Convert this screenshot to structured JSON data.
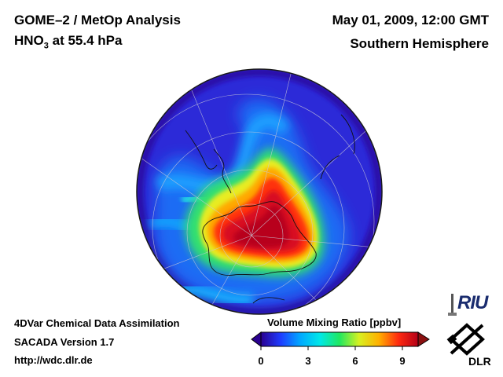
{
  "header": {
    "title": "GOME–2 / MetOp Analysis",
    "species_prefix": "HNO",
    "species_sub": "3",
    "species_suffix": " at 55.4 hPa",
    "date": "May 01, 2009, 12:00 GMT",
    "hemisphere": "Southern Hemisphere"
  },
  "footer": {
    "line1": "4DVar Chemical Data Assimilation",
    "line2": "SACADA Version 1.7",
    "line3": "http://wdc.dlr.de"
  },
  "colorbar": {
    "title": "Volume Mixing Ratio [ppbv]",
    "ticks": [
      "0",
      "3",
      "6",
      "9"
    ],
    "range": [
      0,
      10
    ],
    "colors": [
      "#2a0090",
      "#1e3cff",
      "#00a8ff",
      "#00e8e8",
      "#20e860",
      "#d8f020",
      "#ffb000",
      "#ff2a10",
      "#b40018"
    ]
  },
  "logos": {
    "riu": "RIU",
    "dlr": "DLR"
  },
  "colors": {
    "background_field": "#2a2ce0",
    "max_region": "#e8101e"
  }
}
